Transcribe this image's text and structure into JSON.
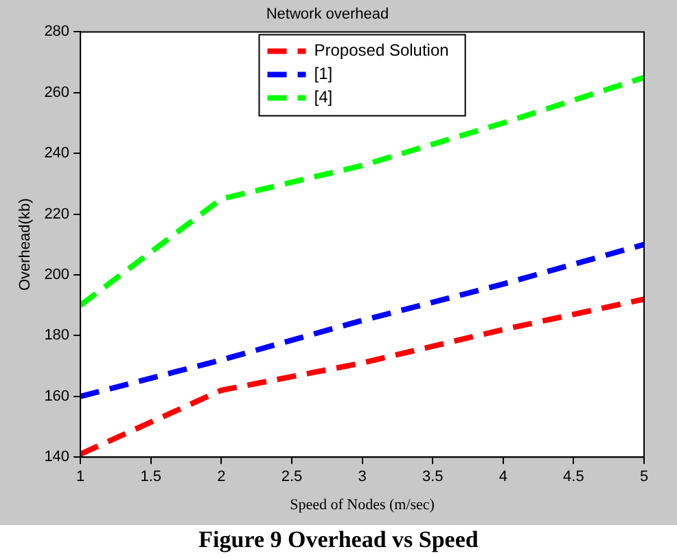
{
  "chart_data": {
    "type": "line",
    "title": "Network overhead",
    "xlabel": "Speed of Nodes (m/sec)",
    "ylabel": "Overhead(kb)",
    "x": [
      1,
      2,
      3,
      4,
      5
    ],
    "series": [
      {
        "name": "Proposed Solution",
        "color": "#ff0000",
        "values": [
          141,
          162,
          171,
          182,
          192
        ]
      },
      {
        "name": "[1]",
        "color": "#0000ff",
        "values": [
          160,
          172,
          185,
          197,
          210
        ]
      },
      {
        "name": "[4]",
        "color": "#00ff00",
        "values": [
          190,
          225,
          236,
          250,
          265
        ]
      }
    ],
    "xlim": [
      1,
      5
    ],
    "xticks": [
      1,
      1.5,
      2,
      2.5,
      3,
      3.5,
      4,
      4.5,
      5
    ],
    "ylim": [
      140,
      280
    ],
    "yticks": [
      140,
      160,
      180,
      200,
      220,
      240,
      260,
      280
    ],
    "grid": false,
    "legend": "top",
    "marker": "none",
    "line_style": "dashed",
    "annotations": [
      "Figure 9 Overhead vs Speed"
    ]
  }
}
